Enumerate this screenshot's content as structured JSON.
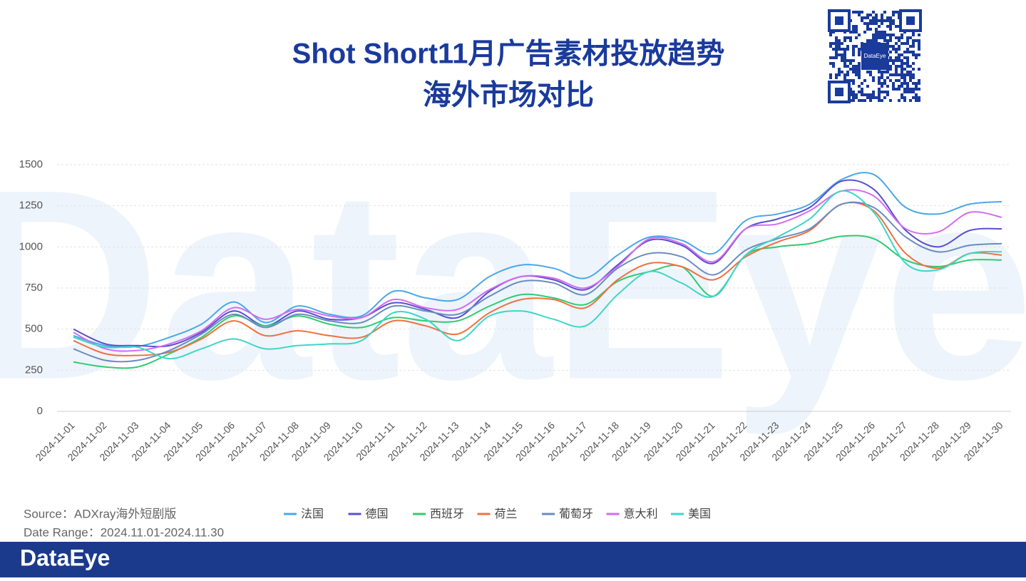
{
  "header": {
    "title_line1": "Shot Short11月广告素材投放趋势",
    "title_line2": "海外市场对比",
    "qr_label": "DataEye"
  },
  "watermark": "DataEye",
  "chart_data": {
    "type": "line",
    "x": [
      "2024-11-01",
      "2024-11-02",
      "2024-11-03",
      "2024-11-04",
      "2024-11-05",
      "2024-11-06",
      "2024-11-07",
      "2024-11-08",
      "2024-11-09",
      "2024-11-10",
      "2024-11-11",
      "2024-11-12",
      "2024-11-13",
      "2024-11-14",
      "2024-11-15",
      "2024-11-16",
      "2024-11-17",
      "2024-11-18",
      "2024-11-19",
      "2024-11-20",
      "2024-11-21",
      "2024-11-22",
      "2024-11-23",
      "2024-11-24",
      "2024-11-25",
      "2024-11-26",
      "2024-11-27",
      "2024-11-28",
      "2024-11-29",
      "2024-11-30"
    ],
    "ylim": [
      0,
      1500
    ],
    "yticks": [
      0,
      250,
      500,
      750,
      1000,
      1250,
      1500
    ],
    "grid": true,
    "smooth": true,
    "series": [
      {
        "name": "法国",
        "color": "#4aa8e8",
        "values": [
          460,
          400,
          395,
          450,
          530,
          665,
          540,
          640,
          590,
          580,
          730,
          690,
          680,
          820,
          890,
          870,
          810,
          950,
          1060,
          1040,
          960,
          1160,
          1200,
          1260,
          1410,
          1440,
          1240,
          1200,
          1260,
          1275
        ]
      },
      {
        "name": "德国",
        "color": "#5a4fcf",
        "values": [
          500,
          410,
          400,
          400,
          480,
          610,
          520,
          610,
          560,
          570,
          660,
          620,
          570,
          730,
          820,
          800,
          740,
          890,
          1040,
          1010,
          900,
          1110,
          1170,
          1240,
          1400,
          1350,
          1100,
          1000,
          1100,
          1110
        ]
      },
      {
        "name": "西班牙",
        "color": "#2ecc71",
        "values": [
          300,
          270,
          270,
          350,
          450,
          580,
          520,
          580,
          530,
          510,
          570,
          550,
          550,
          640,
          710,
          690,
          650,
          790,
          850,
          880,
          700,
          950,
          1000,
          1020,
          1065,
          1050,
          920,
          880,
          920,
          920
        ]
      },
      {
        "name": "荷兰",
        "color": "#f07040",
        "values": [
          430,
          350,
          340,
          360,
          440,
          550,
          460,
          490,
          460,
          450,
          550,
          520,
          470,
          600,
          680,
          680,
          630,
          800,
          900,
          880,
          800,
          940,
          1030,
          1100,
          1260,
          1220,
          960,
          870,
          960,
          950
        ]
      },
      {
        "name": "葡萄牙",
        "color": "#6a8cc0",
        "values": [
          380,
          310,
          310,
          370,
          470,
          590,
          510,
          590,
          550,
          540,
          640,
          610,
          590,
          700,
          790,
          780,
          710,
          870,
          960,
          940,
          830,
          980,
          1050,
          1110,
          1260,
          1240,
          1060,
          970,
          1010,
          1020
        ]
      },
      {
        "name": "意大利",
        "color": "#d36cf0",
        "values": [
          480,
          380,
          370,
          410,
          490,
          630,
          560,
          620,
          580,
          570,
          680,
          630,
          620,
          740,
          820,
          810,
          750,
          880,
          1050,
          1020,
          910,
          1110,
          1140,
          1220,
          1340,
          1310,
          1110,
          1090,
          1210,
          1180
        ]
      },
      {
        "name": "美国",
        "color": "#3ed6c7",
        "values": [
          450,
          390,
          390,
          320,
          380,
          440,
          380,
          400,
          410,
          430,
          600,
          560,
          430,
          580,
          610,
          560,
          520,
          710,
          850,
          780,
          700,
          950,
          1060,
          1170,
          1340,
          1210,
          900,
          860,
          960,
          970
        ]
      }
    ]
  },
  "footer": {
    "source": "Source：ADXray海外短剧版",
    "date_range": "Date Range：2024.11.01-2024.11.30",
    "logo": "DataEye"
  }
}
